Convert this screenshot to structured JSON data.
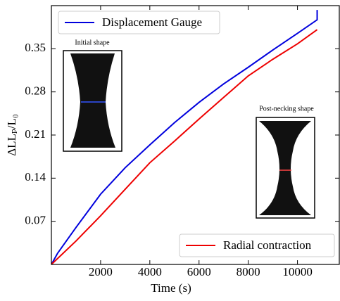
{
  "chart_data": {
    "type": "line",
    "xlabel": "Time (s)",
    "ylabel": "ΔLLₚ/L₀",
    "xlim": [
      0,
      11700
    ],
    "ylim": [
      0,
      0.42
    ],
    "xticks": [
      2000,
      4000,
      6000,
      8000,
      10000
    ],
    "yticks": [
      0.07,
      0.14,
      0.21,
      0.28,
      0.35
    ],
    "annotations": [
      "Initial shape",
      "Post-necking shape"
    ],
    "series": [
      {
        "name": "Displacement Gauge",
        "color": "#0000dd",
        "legend_loc": "upper left",
        "x": [
          0,
          250,
          500,
          1000,
          2000,
          3000,
          4000,
          5000,
          6000,
          7000,
          8000,
          9000,
          10000,
          10800,
          10800
        ],
        "values": [
          0,
          0.018,
          0.032,
          0.06,
          0.114,
          0.157,
          0.194,
          0.23,
          0.263,
          0.293,
          0.32,
          0.348,
          0.375,
          0.397,
          0.413
        ]
      },
      {
        "name": "Radial contraction",
        "color": "#ee0000",
        "legend_loc": "lower right",
        "x": [
          0,
          1000,
          2000,
          3000,
          4000,
          5000,
          6000,
          7000,
          8000,
          9000,
          10000,
          10800
        ],
        "values": [
          0,
          0.038,
          0.079,
          0.122,
          0.165,
          0.2,
          0.236,
          0.271,
          0.306,
          0.333,
          0.358,
          0.381
        ]
      }
    ]
  }
}
